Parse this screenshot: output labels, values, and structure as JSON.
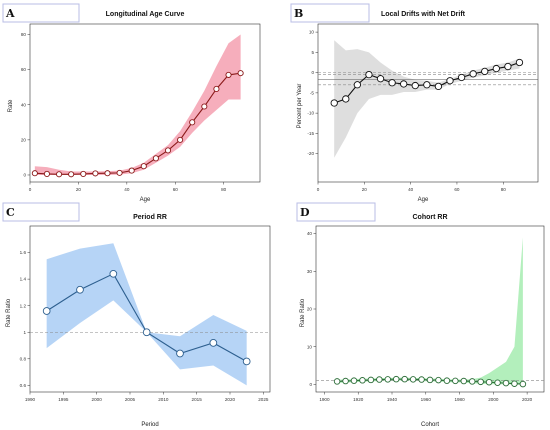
{
  "panels": [
    {
      "label": "A",
      "title": "Longitudinal Age Curve",
      "xlabel": "Age",
      "ylabel": "Rate",
      "xlim": [
        0,
        95
      ],
      "ylim": [
        -4,
        86
      ],
      "xticks": [
        0,
        20,
        40,
        60,
        80
      ],
      "yticks": [
        0,
        20,
        40,
        60,
        80
      ],
      "line_color": "#8b1a1a",
      "band_color": "#f4a0b0",
      "marker_fill": "#ffffff",
      "refs": []
    },
    {
      "label": "B",
      "title": "Local Drifts with Net Drift",
      "xlabel": "Age",
      "ylabel": "Percent per Year",
      "xlim": [
        0,
        95
      ],
      "ylim": [
        -27,
        12
      ],
      "xticks": [
        0,
        20,
        40,
        60,
        80
      ],
      "yticks": [
        -20,
        -15,
        -10,
        -5,
        0,
        5,
        10
      ],
      "line_color": "#111111",
      "band_color": "#d8d8d8",
      "marker_fill": "#ffffff",
      "refs": [
        {
          "y": 0,
          "style": "dashed"
        },
        {
          "y": -1.7,
          "style": "solid"
        },
        {
          "y": -0.5,
          "style": "dashed"
        },
        {
          "y": -3.0,
          "style": "dashed"
        }
      ]
    },
    {
      "label": "C",
      "title": "Period RR",
      "xlabel": "Period",
      "ylabel": "Rate Ratio",
      "xlim": [
        1990,
        2026
      ],
      "ylim": [
        0.55,
        1.8
      ],
      "xticks": [
        1990,
        1995,
        2000,
        2005,
        2010,
        2015,
        2020,
        2025
      ],
      "yticks": [
        0.6,
        0.8,
        1.0,
        1.2,
        1.4,
        1.6
      ],
      "line_color": "#2d5f8f",
      "band_color": "#a9cdf5",
      "marker_fill": "#ffffff",
      "refs": [
        {
          "y": 1.0,
          "style": "dashed"
        }
      ]
    },
    {
      "label": "D",
      "title": "Cohort RR",
      "xlabel": "Cohort",
      "ylabel": "Rate Ratio",
      "xlim": [
        1895,
        2030
      ],
      "ylim": [
        -2,
        42
      ],
      "xticks": [
        1900,
        1920,
        1940,
        1960,
        1980,
        2000,
        2020
      ],
      "yticks": [
        0,
        10,
        20,
        30,
        40
      ],
      "line_color": "#2e6e3a",
      "band_color": "#a6ecb0",
      "marker_fill": "#ffffff",
      "refs": [
        {
          "y": 1.0,
          "style": "dashed"
        }
      ]
    }
  ],
  "chart_data": [
    {
      "type": "line",
      "title": "Longitudinal Age Curve",
      "xlabel": "Age",
      "ylabel": "Rate",
      "x": [
        2,
        7,
        12,
        17,
        22,
        27,
        32,
        37,
        42,
        47,
        52,
        57,
        62,
        67,
        72,
        77,
        82,
        87
      ],
      "series": [
        {
          "values": [
            1,
            0.6,
            0.4,
            0.4,
            0.6,
            0.9,
            1.0,
            1.2,
            2.5,
            5,
            9.5,
            14,
            20,
            30,
            39,
            49,
            57,
            58
          ]
        }
      ],
      "band_upper": [
        5,
        4.5,
        3,
        2,
        2,
        2,
        2.2,
        2.5,
        4,
        7,
        12,
        17,
        25,
        36,
        48,
        62,
        75,
        80
      ],
      "band_lower": [
        0,
        0,
        0,
        0,
        0,
        0,
        0,
        0.2,
        1,
        3,
        7,
        11,
        16,
        24,
        31,
        37,
        43,
        43
      ],
      "xlim": [
        0,
        95
      ],
      "ylim": [
        -4,
        86
      ]
    },
    {
      "type": "line",
      "title": "Local Drifts with Net Drift",
      "xlabel": "Age",
      "ylabel": "Percent per Year",
      "x": [
        7,
        12,
        17,
        22,
        27,
        32,
        37,
        42,
        47,
        52,
        57,
        62,
        67,
        72,
        77,
        82,
        87
      ],
      "series": [
        {
          "values": [
            -7.5,
            -6.5,
            -3,
            -0.5,
            -1.5,
            -2.5,
            -2.8,
            -3.2,
            -3.0,
            -3.4,
            -2.0,
            -1.2,
            -0.3,
            0.3,
            1.0,
            1.5,
            2.5
          ]
        }
      ],
      "band_upper": [
        8,
        5.5,
        5.8,
        5,
        2.5,
        0.5,
        -1,
        -1.8,
        -2,
        -2.5,
        -1.5,
        -0.5,
        0.5,
        1.2,
        2,
        2.5,
        3.5
      ],
      "band_lower": [
        -21,
        -16,
        -10,
        -6.5,
        -5.5,
        -5.5,
        -4.8,
        -4.8,
        -4.2,
        -4.2,
        -2.8,
        -2.0,
        -1.2,
        -0.7,
        0,
        0.5,
        1.0
      ],
      "net_drift": -1.7,
      "net_drift_ci": [
        -3.0,
        -0.5
      ],
      "xlim": [
        0,
        95
      ],
      "ylim": [
        -27,
        12
      ]
    },
    {
      "type": "line",
      "title": "Period RR",
      "xlabel": "Period",
      "ylabel": "Rate Ratio",
      "x": [
        1992.5,
        1997.5,
        2002.5,
        2007.5,
        2012.5,
        2017.5,
        2022.5
      ],
      "series": [
        {
          "values": [
            1.16,
            1.32,
            1.44,
            1.0,
            0.84,
            0.92,
            0.78
          ]
        }
      ],
      "band_upper": [
        1.55,
        1.63,
        1.67,
        1.0,
        0.97,
        1.13,
        1.01
      ],
      "band_lower": [
        0.88,
        1.07,
        1.24,
        1.0,
        0.72,
        0.75,
        0.6
      ],
      "xlim": [
        1990,
        2026
      ],
      "ylim": [
        0.55,
        1.8
      ]
    },
    {
      "type": "line",
      "title": "Cohort RR",
      "xlabel": "Cohort",
      "ylabel": "Rate Ratio",
      "x": [
        1907.5,
        1912.5,
        1917.5,
        1922.5,
        1927.5,
        1932.5,
        1937.5,
        1942.5,
        1947.5,
        1952.5,
        1957.5,
        1962.5,
        1967.5,
        1972.5,
        1977.5,
        1982.5,
        1987.5,
        1992.5,
        1997.5,
        2002.5,
        2007.5,
        2012.5,
        2017.5
      ],
      "series": [
        {
          "values": [
            0.8,
            0.9,
            1.0,
            1.1,
            1.2,
            1.3,
            1.35,
            1.4,
            1.4,
            1.35,
            1.3,
            1.2,
            1.15,
            1.0,
            0.95,
            0.9,
            0.8,
            0.7,
            0.6,
            0.45,
            0.35,
            0.2,
            0.1
          ]
        }
      ],
      "band_upper": [
        1.3,
        1.3,
        1.4,
        1.5,
        1.6,
        1.7,
        1.7,
        1.8,
        1.8,
        1.7,
        1.7,
        1.6,
        1.5,
        1.4,
        1.3,
        1.3,
        1.4,
        1.8,
        3,
        4.5,
        6,
        10,
        39
      ],
      "band_lower": [
        0.4,
        0.5,
        0.6,
        0.7,
        0.8,
        0.9,
        1.0,
        1.0,
        1.0,
        1.0,
        0.9,
        0.8,
        0.8,
        0.6,
        0.6,
        0.5,
        0.3,
        0.2,
        0.1,
        0.05,
        0.02,
        0.0,
        0.0
      ],
      "xlim": [
        1895,
        2030
      ],
      "ylim": [
        -2,
        42
      ]
    }
  ]
}
